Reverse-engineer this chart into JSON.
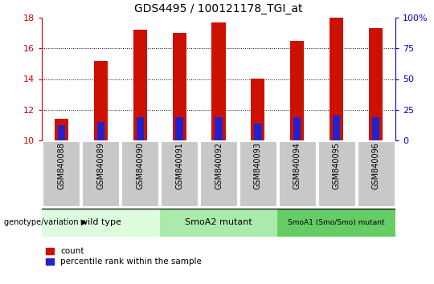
{
  "title": "GDS4495 / 100121178_TGI_at",
  "samples": [
    "GSM840088",
    "GSM840089",
    "GSM840090",
    "GSM840091",
    "GSM840092",
    "GSM840093",
    "GSM840094",
    "GSM840095",
    "GSM840096"
  ],
  "count_values": [
    11.4,
    15.2,
    17.2,
    17.0,
    17.7,
    14.0,
    16.5,
    18.0,
    17.3
  ],
  "percentile_values": [
    11.0,
    11.2,
    11.5,
    11.5,
    11.5,
    11.1,
    11.5,
    11.6,
    11.5
  ],
  "y_min": 10,
  "y_max": 18,
  "y_ticks": [
    10,
    12,
    14,
    16,
    18
  ],
  "right_y_ticks": [
    0,
    25,
    50,
    75,
    100
  ],
  "groups": [
    {
      "label": "wild type",
      "start": 0,
      "end": 3,
      "color": "#ddfcdd"
    },
    {
      "label": "SmoA2 mutant",
      "start": 3,
      "end": 6,
      "color": "#aaeaaa"
    },
    {
      "label": "SmoA1 (Smo/Smo) mutant",
      "start": 6,
      "end": 9,
      "color": "#66cc66"
    }
  ],
  "bar_color": "#cc1100",
  "percentile_color": "#2222cc",
  "bar_width": 0.35,
  "left_axis_color": "#cc0000",
  "right_axis_color": "#0000cc",
  "legend_count_label": "count",
  "legend_percentile_label": "percentile rank within the sample",
  "genotype_label": "genotype/variation",
  "title_fontsize": 10,
  "tick_fontsize": 8,
  "sample_fontsize": 7,
  "group_fontsize_default": 8,
  "group_fontsize_small": 6.5
}
